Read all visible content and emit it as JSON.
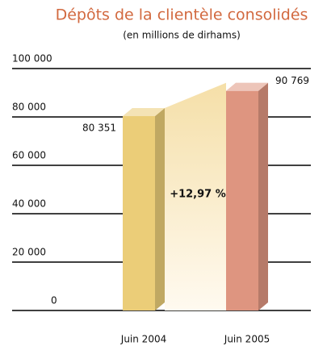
{
  "chart_data": {
    "type": "bar3d",
    "title": "Dépôts de la clientèle consolidés",
    "subtitle": "(en millions de dirhams)",
    "annotation": "+12,97 %",
    "categories": [
      "Juin 2004",
      "Juin 2005"
    ],
    "values": [
      80351,
      90769
    ],
    "value_labels": [
      "80 351",
      "90 769"
    ],
    "colors": [
      "#ebcd78",
      "#de9580"
    ],
    "title_color": "#d2693f",
    "ylim": [
      0,
      100000
    ],
    "yticks": [
      0,
      {
        "value": 20000,
        "label": "20 000"
      },
      {
        "value": 40000,
        "label": "40 000"
      },
      {
        "value": 60000,
        "label": "60 000"
      },
      {
        "value": 80000,
        "label": "80 000"
      },
      {
        "value": 100000,
        "label": "100 000"
      }
    ],
    "grid": true
  }
}
